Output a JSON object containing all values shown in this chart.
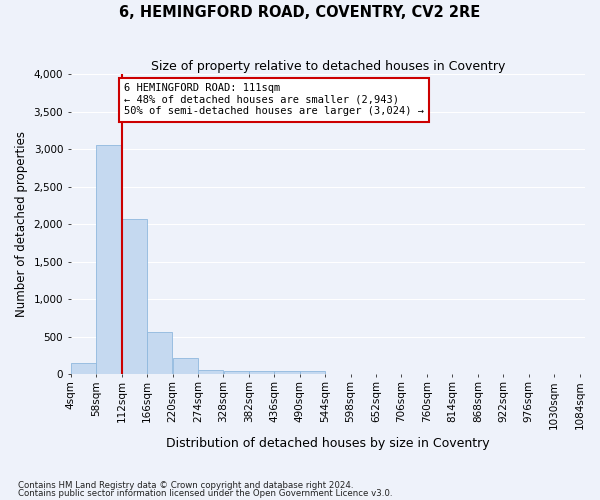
{
  "title": "6, HEMINGFORD ROAD, COVENTRY, CV2 2RE",
  "subtitle": "Size of property relative to detached houses in Coventry",
  "xlabel": "Distribution of detached houses by size in Coventry",
  "ylabel": "Number of detached properties",
  "footnote1": "Contains HM Land Registry data © Crown copyright and database right 2024.",
  "footnote2": "Contains public sector information licensed under the Open Government Licence v3.0.",
  "annotation_line1": "6 HEMINGFORD ROAD: 111sqm",
  "annotation_line2": "← 48% of detached houses are smaller (2,943)",
  "annotation_line3": "50% of semi-detached houses are larger (3,024) →",
  "bar_color": "#c5d9f0",
  "bar_edge_color": "#8fb8de",
  "red_line_color": "#cc0000",
  "annotation_box_edgecolor": "#cc0000",
  "background_color": "#eef2fa",
  "grid_color": "#ffffff",
  "bin_starts": [
    4,
    58,
    112,
    166,
    220,
    274,
    328,
    382,
    436,
    490,
    544,
    598,
    652,
    706,
    760,
    814,
    868,
    922,
    976,
    1030
  ],
  "bin_width": 54,
  "bar_heights": [
    150,
    3060,
    2070,
    570,
    215,
    65,
    50,
    45,
    45,
    45,
    0,
    0,
    0,
    0,
    0,
    0,
    0,
    0,
    0,
    0
  ],
  "xtick_labels": [
    "4sqm",
    "58sqm",
    "112sqm",
    "166sqm",
    "220sqm",
    "274sqm",
    "328sqm",
    "382sqm",
    "436sqm",
    "490sqm",
    "544sqm",
    "598sqm",
    "652sqm",
    "706sqm",
    "760sqm",
    "814sqm",
    "868sqm",
    "922sqm",
    "976sqm",
    "1030sqm",
    "1084sqm"
  ],
  "xtick_positions": [
    4,
    58,
    112,
    166,
    220,
    274,
    328,
    382,
    436,
    490,
    544,
    598,
    652,
    706,
    760,
    814,
    868,
    922,
    976,
    1030,
    1084
  ],
  "ylim": [
    0,
    4000
  ],
  "yticks": [
    0,
    500,
    1000,
    1500,
    2000,
    2500,
    3000,
    3500,
    4000
  ],
  "red_line_x": 112
}
